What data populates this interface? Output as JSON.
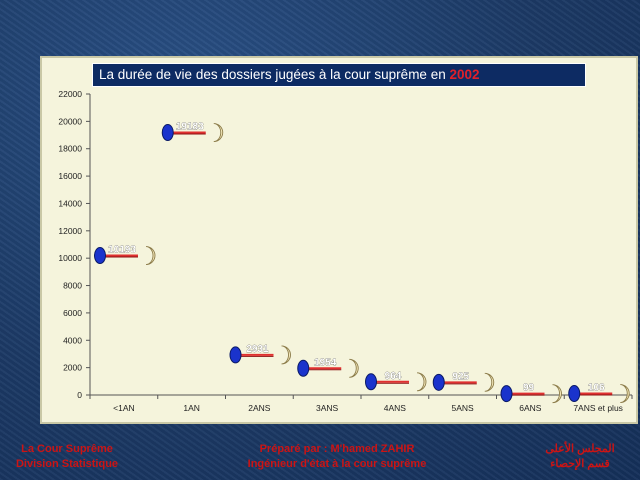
{
  "chart_data": {
    "type": "scatter",
    "title": "La durée de vie des dossiers jugées à la cour suprême en",
    "title_year": "2002",
    "categories": [
      "<1AN",
      "1AN",
      "2ANS",
      "3ANS",
      "4ANS",
      "5ANS",
      "6ANS",
      "7ANS et plus"
    ],
    "values": [
      10193,
      19183,
      2931,
      1954,
      964,
      925,
      99,
      106
    ],
    "data_labels": [
      "10193",
      "19183",
      "2931",
      "1954",
      "964",
      "925",
      "99",
      "106"
    ],
    "yticks": [
      "0",
      "2000",
      "4000",
      "6000",
      "8000",
      "10000",
      "12000",
      "14000",
      "16000",
      "18000",
      "20000",
      "22000"
    ],
    "ylim": [
      0,
      22000
    ],
    "xlabel": "",
    "ylabel": "",
    "grid": false,
    "legend": "none",
    "colors": {
      "marker": "#1a33cc",
      "line": "#e03030",
      "crescent": "#f2e6b8",
      "title_bg": "#0d2b63",
      "title_year": "#e0202a",
      "footer_text": "#cc1414"
    }
  },
  "footer": {
    "left_line1": "La Cour Suprême",
    "left_line2": "Division Statistique",
    "center_line1": "Préparé par : M'hamed ZAHIR",
    "center_line2": "Ingénieur d'état à la cour suprême",
    "right_line1": "المجلس الأعلى",
    "right_line2": "قسم الإحصاء"
  }
}
